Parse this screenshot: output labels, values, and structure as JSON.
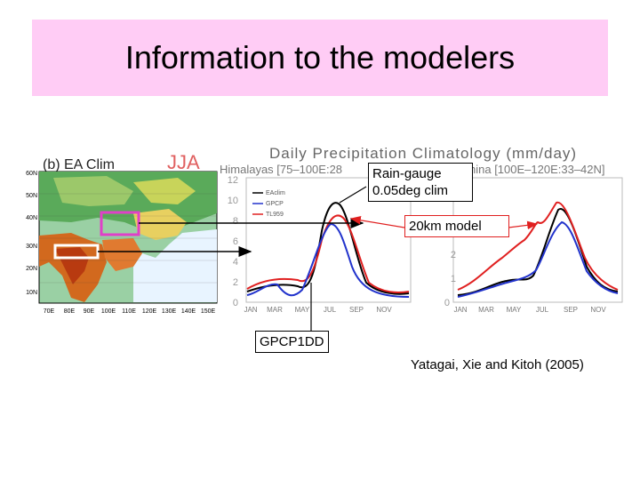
{
  "slide": {
    "title": "Information to the modelers",
    "citation": "Yatagai, Xie and Kitoh (2005)"
  },
  "callouts": {
    "raingauge": [
      "Rain-gauge",
      "0.05deg clim"
    ],
    "model": "20km model",
    "gpcp": "GPCP1DD"
  },
  "figure": {
    "header": "Daily Precipitation Climatology (mm/day)",
    "map_label": "(b) EA Clim",
    "season": "JJA",
    "panel1_title": "Himalayas [75–100E:28",
    "panel2_title": "hina [100E–120E:33–42N]",
    "legend": [
      "EAclim",
      "GPCP",
      "TL959"
    ],
    "map_lat_labels": [
      "60N",
      "50N",
      "40N",
      "30N",
      "20N",
      "10N"
    ],
    "map_lon_labels": [
      "70E",
      "80E",
      "90E",
      "100E",
      "110E",
      "120E",
      "130E",
      "140E",
      "150E"
    ],
    "month_labels": [
      "JAN",
      "MAR",
      "MAY",
      "JUL",
      "SEP",
      "NOV"
    ],
    "panel1_yticks": [
      "0",
      "2",
      "4",
      "6",
      "8",
      "10",
      "12"
    ],
    "panel2_yticks": [
      "0",
      "1",
      "2"
    ]
  },
  "colors": {
    "title_bg": "#ffccf5",
    "series_eaclim": "#000000",
    "series_gpcp": "#2233cc",
    "series_tl959": "#e02020",
    "box_pink": "#e040c8"
  }
}
